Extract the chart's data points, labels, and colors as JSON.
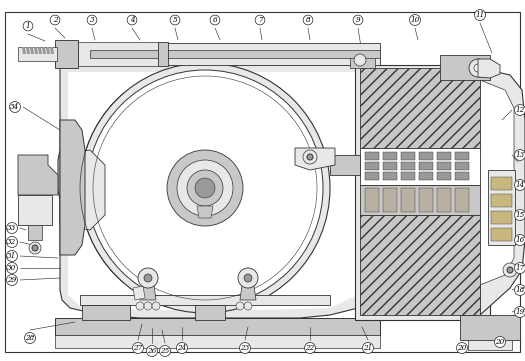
{
  "bg_color": "#ffffff",
  "line_color": "#333333",
  "figsize": [
    5.25,
    3.61
  ],
  "dpi": 100,
  "gray_light": "#e8e8e8",
  "gray_mid": "#c8c8c8",
  "gray_dark": "#999999",
  "gray_fill": "#d4d4d4",
  "white": "#ffffff",
  "hatch_gray": "#aaaaaa"
}
